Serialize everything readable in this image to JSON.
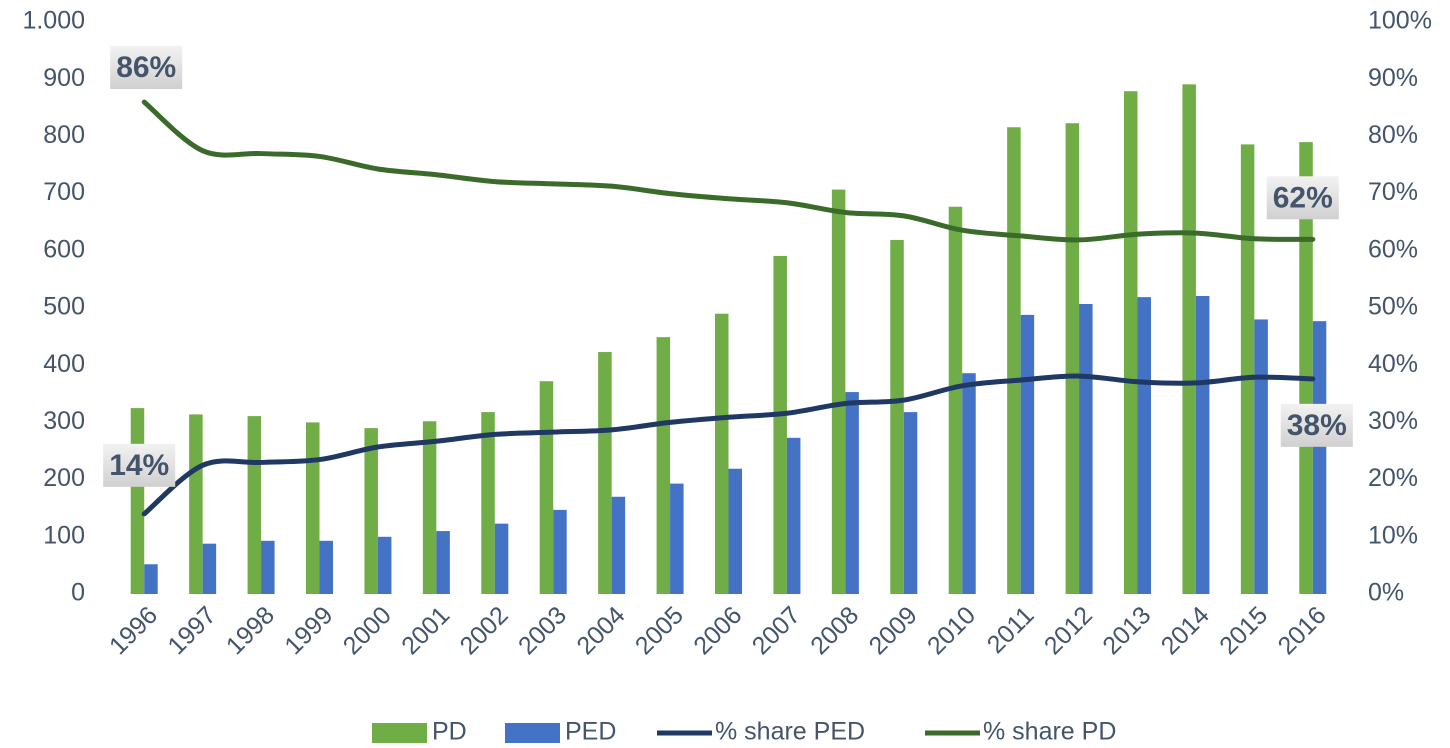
{
  "chart_data": {
    "type": "bar-line",
    "categories": [
      "1996",
      "1997",
      "1998",
      "1999",
      "2000",
      "2001",
      "2002",
      "2003",
      "2004",
      "2005",
      "2006",
      "2007",
      "2008",
      "2009",
      "2010",
      "2011",
      "2012",
      "2013",
      "2014",
      "2015",
      "2016"
    ],
    "series": [
      {
        "name": "PD",
        "type": "bar",
        "color": "#70ad47",
        "values": [
          325,
          314,
          311,
          300,
          290,
          302,
          318,
          372,
          423,
          449,
          490,
          591,
          707,
          619,
          677,
          816,
          823,
          879,
          891,
          786,
          790
        ]
      },
      {
        "name": "PED",
        "type": "bar",
        "color": "#4472c4",
        "values": [
          52,
          88,
          93,
          93,
          100,
          110,
          123,
          147,
          170,
          193,
          219,
          273,
          353,
          318,
          386,
          488,
          507,
          519,
          521,
          480,
          477
        ]
      },
      {
        "name": "% share PED",
        "type": "line",
        "axis": "y2",
        "color": "#1f3864",
        "values": [
          14,
          22.5,
          23,
          23.5,
          25.7,
          26.7,
          27.9,
          28.3,
          28.7,
          30,
          30.9,
          31.6,
          33.3,
          33.9,
          36.4,
          37.4,
          38.1,
          37.1,
          36.9,
          37.9,
          37.6
        ],
        "value_labels": [
          "14%",
          null,
          null,
          null,
          null,
          null,
          null,
          null,
          null,
          null,
          null,
          null,
          null,
          null,
          null,
          null,
          null,
          null,
          null,
          null,
          "38%"
        ]
      },
      {
        "name": "% share PD",
        "type": "line",
        "axis": "y2",
        "color": "#3b6b2a",
        "values": [
          86,
          77.5,
          77,
          76.5,
          74.3,
          73.3,
          72.1,
          71.7,
          71.3,
          70,
          69.1,
          68.4,
          66.7,
          66.1,
          63.6,
          62.6,
          61.9,
          62.9,
          63.1,
          62.1,
          62
        ],
        "value_labels": [
          "86%",
          null,
          null,
          null,
          null,
          null,
          null,
          null,
          null,
          null,
          null,
          null,
          null,
          null,
          null,
          null,
          null,
          null,
          null,
          null,
          "62%"
        ]
      }
    ],
    "ylim": [
      0,
      1000
    ],
    "yticks": [
      0,
      100,
      200,
      300,
      400,
      500,
      600,
      700,
      800,
      900,
      {
        "value": 1000,
        "label": "1.000"
      }
    ],
    "y2lim": [
      0,
      100
    ],
    "y2ticks": [
      {
        "value": 0,
        "label": "0%"
      },
      {
        "value": 10,
        "label": "10%"
      },
      {
        "value": 20,
        "label": "20%"
      },
      {
        "value": 30,
        "label": "30%"
      },
      {
        "value": 40,
        "label": "40%"
      },
      {
        "value": 50,
        "label": "50%"
      },
      {
        "value": 60,
        "label": "60%"
      },
      {
        "value": 70,
        "label": "70%"
      },
      {
        "value": 80,
        "label": "80%"
      },
      {
        "value": 90,
        "label": "90%"
      },
      {
        "value": 100,
        "label": "100%"
      }
    ],
    "legend": "bottom",
    "grid": false
  }
}
